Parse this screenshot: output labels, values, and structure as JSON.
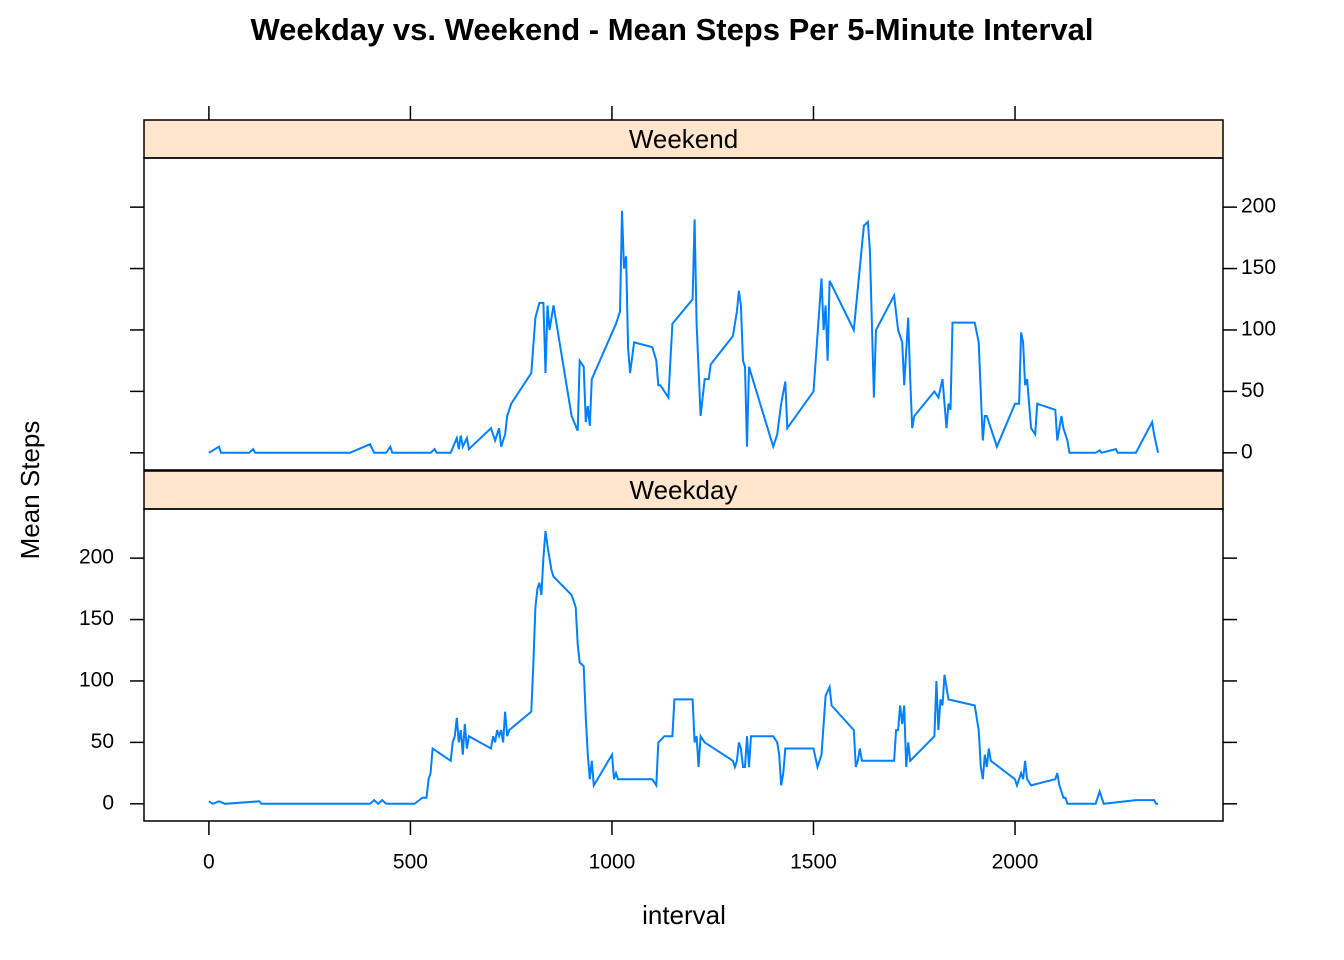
{
  "chart_data": {
    "type": "line",
    "title": "Weekday vs. Weekend - Mean Steps Per 5-Minute Interval",
    "x_label": "interval",
    "y_label": "Mean Steps",
    "xlim": [
      -161,
      2516
    ],
    "xticks": [
      0,
      500,
      1000,
      1500,
      2000
    ],
    "ylim": [
      -14,
      240
    ],
    "yticks": [
      0,
      50,
      100,
      150,
      200
    ],
    "strip_color": "#ffe5cc",
    "series": [
      {
        "name": "Weekend",
        "color": "#0080ff",
        "x": [
          0,
          25,
          30,
          100,
          110,
          115,
          350,
          400,
          410,
          440,
          450,
          455,
          550,
          560,
          565,
          600,
          615,
          620,
          625,
          630,
          640,
          645,
          700,
          710,
          720,
          725,
          735,
          740,
          750,
          800,
          810,
          820,
          830,
          835,
          840,
          845,
          850,
          855,
          900,
          915,
          920,
          930,
          935,
          940,
          945,
          950,
          1010,
          1020,
          1025,
          1030,
          1035,
          1040,
          1045,
          1055,
          1100,
          1110,
          1115,
          1120,
          1130,
          1140,
          1150,
          1200,
          1205,
          1210,
          1220,
          1230,
          1240,
          1245,
          1300,
          1310,
          1315,
          1320,
          1325,
          1330,
          1335,
          1340,
          1400,
          1410,
          1420,
          1430,
          1435,
          1500,
          1520,
          1525,
          1530,
          1535,
          1540,
          1600,
          1625,
          1635,
          1640,
          1650,
          1655,
          1700,
          1710,
          1720,
          1725,
          1735,
          1740,
          1745,
          1750,
          1800,
          1810,
          1820,
          1830,
          1835,
          1840,
          1845,
          1900,
          1910,
          1920,
          1925,
          1930,
          1940,
          1950,
          1955,
          2000,
          2010,
          2015,
          2020,
          2025,
          2030,
          2040,
          2050,
          2055,
          2100,
          2105,
          2110,
          2115,
          2120,
          2130,
          2135,
          2200,
          2210,
          2215,
          2250,
          2255,
          2300,
          2340,
          2345,
          2355
        ],
        "values": [
          0,
          5,
          0,
          0,
          3,
          0,
          0,
          7,
          0,
          0,
          5,
          0,
          0,
          3,
          0,
          0,
          12,
          3,
          14,
          5,
          12,
          3,
          20,
          10,
          20,
          5,
          15,
          30,
          40,
          65,
          110,
          122,
          122,
          65,
          120,
          100,
          110,
          120,
          30,
          18,
          75,
          70,
          25,
          38,
          22,
          60,
          105,
          115,
          197,
          150,
          160,
          85,
          65,
          90,
          86,
          75,
          55,
          55,
          50,
          45,
          105,
          125,
          190,
          105,
          30,
          60,
          60,
          72,
          95,
          115,
          132,
          120,
          75,
          70,
          5,
          70,
          5,
          15,
          40,
          58,
          20,
          50,
          142,
          100,
          120,
          75,
          140,
          100,
          185,
          188,
          165,
          45,
          100,
          128,
          100,
          90,
          55,
          110,
          60,
          20,
          30,
          50,
          45,
          60,
          20,
          40,
          35,
          106,
          106,
          90,
          10,
          30,
          30,
          20,
          10,
          5,
          40,
          40,
          98,
          90,
          55,
          60,
          20,
          15,
          40,
          35,
          10,
          20,
          30,
          20,
          10,
          0,
          0,
          2,
          0,
          3,
          0,
          0,
          25,
          15,
          0
        ]
      },
      {
        "name": "Weekday",
        "color": "#0080ff",
        "x": [
          0,
          10,
          25,
          40,
          125,
          130,
          200,
          400,
          410,
          420,
          430,
          440,
          500,
          510,
          530,
          540,
          545,
          550,
          555,
          600,
          605,
          610,
          615,
          620,
          625,
          630,
          635,
          640,
          645,
          700,
          705,
          710,
          715,
          720,
          725,
          730,
          735,
          740,
          745,
          800,
          805,
          810,
          815,
          820,
          825,
          830,
          835,
          840,
          845,
          850,
          855,
          900,
          905,
          910,
          915,
          920,
          930,
          935,
          940,
          945,
          950,
          955,
          1000,
          1005,
          1010,
          1015,
          1100,
          1110,
          1115,
          1130,
          1150,
          1155,
          1200,
          1205,
          1210,
          1215,
          1220,
          1230,
          1300,
          1305,
          1310,
          1315,
          1320,
          1325,
          1330,
          1335,
          1340,
          1345,
          1400,
          1410,
          1415,
          1420,
          1425,
          1430,
          1500,
          1510,
          1520,
          1530,
          1540,
          1545,
          1600,
          1605,
          1610,
          1615,
          1620,
          1700,
          1705,
          1710,
          1715,
          1720,
          1725,
          1730,
          1735,
          1740,
          1800,
          1805,
          1810,
          1815,
          1820,
          1825,
          1830,
          1835,
          1900,
          1910,
          1915,
          1920,
          1925,
          1930,
          1935,
          1940,
          2000,
          2005,
          2010,
          2015,
          2020,
          2025,
          2030,
          2040,
          2100,
          2105,
          2110,
          2115,
          2120,
          2125,
          2130,
          2200,
          2210,
          2215,
          2220,
          2300,
          2345,
          2350,
          2355
        ],
        "values": [
          2,
          0,
          2,
          0,
          2,
          0,
          0,
          0,
          3,
          0,
          3,
          0,
          0,
          0,
          5,
          5,
          20,
          25,
          45,
          35,
          50,
          55,
          70,
          50,
          60,
          40,
          65,
          45,
          55,
          45,
          55,
          50,
          60,
          55,
          60,
          50,
          75,
          55,
          60,
          75,
          115,
          160,
          175,
          180,
          170,
          200,
          222,
          210,
          200,
          190,
          185,
          170,
          165,
          160,
          130,
          115,
          112,
          70,
          40,
          20,
          35,
          15,
          40,
          20,
          25,
          20,
          20,
          15,
          50,
          55,
          55,
          85,
          85,
          50,
          55,
          30,
          55,
          50,
          35,
          30,
          35,
          50,
          45,
          30,
          30,
          55,
          30,
          55,
          55,
          50,
          40,
          15,
          25,
          45,
          45,
          30,
          40,
          88,
          95,
          80,
          60,
          30,
          35,
          45,
          35,
          35,
          60,
          60,
          80,
          65,
          80,
          30,
          50,
          35,
          55,
          100,
          60,
          85,
          80,
          105,
          95,
          85,
          80,
          60,
          30,
          20,
          40,
          30,
          45,
          35,
          20,
          15,
          20,
          25,
          20,
          35,
          20,
          15,
          20,
          25,
          15,
          10,
          5,
          5,
          0,
          0,
          10,
          5,
          0,
          3,
          3,
          0,
          0
        ]
      }
    ]
  }
}
